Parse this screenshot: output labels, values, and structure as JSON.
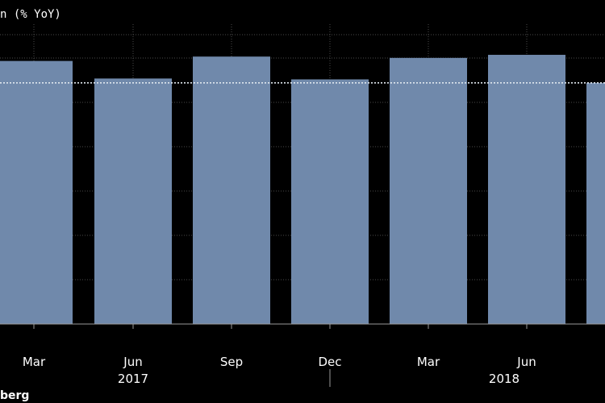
{
  "chart_data": {
    "type": "bar",
    "title": "n (% YoY)",
    "categories": [
      "Mar",
      "Jun",
      "Sep",
      "Dec",
      "Mar",
      "Jun",
      ""
    ],
    "year_labels": [
      "2017",
      "2018"
    ],
    "values": [
      6.0,
      5.6,
      6.1,
      5.58,
      6.07,
      6.14,
      5.5
    ],
    "reference_line": 5.5,
    "ylim": [
      0,
      6.6
    ],
    "grid": true,
    "xlabel": "",
    "ylabel": ""
  },
  "colors": {
    "background": "#000000",
    "bar": "#7089ab",
    "grid": "#4a4a4a",
    "reference_line": "#dfe6ee",
    "text": "#ffffff"
  },
  "footer": {
    "source": "berg"
  }
}
